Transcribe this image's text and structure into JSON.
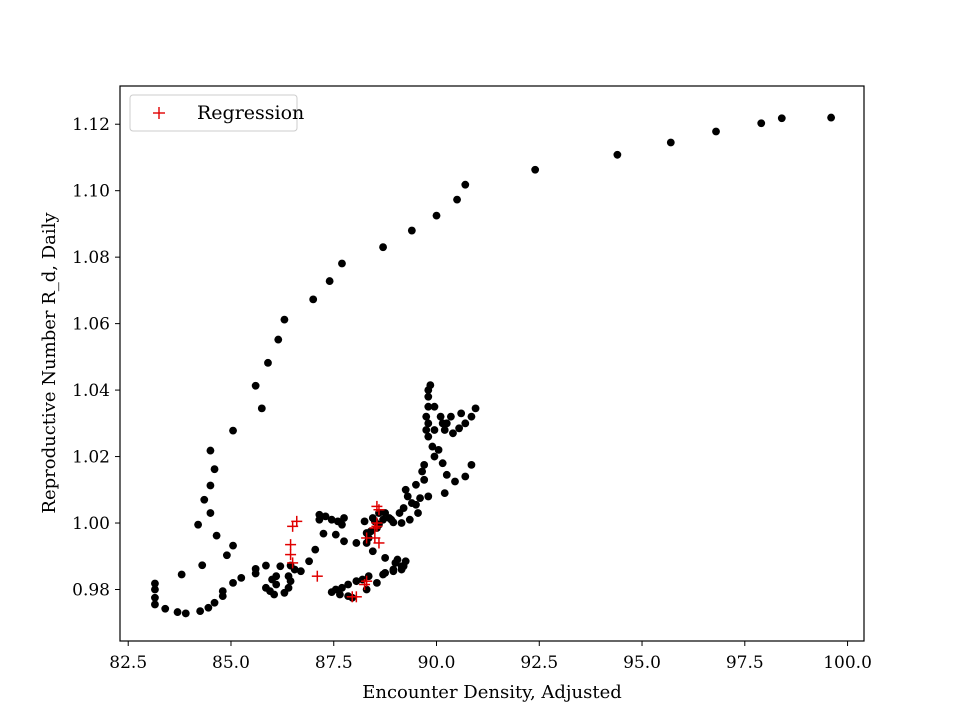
{
  "chart_data": {
    "type": "scatter",
    "title": "",
    "xlabel": "Encounter Density, Adjusted",
    "ylabel": "Reproductive Number R_d, Daily",
    "xlim": [
      82.3,
      100.4
    ],
    "ylim": [
      0.9645,
      1.1315
    ],
    "x_ticks": [
      82.5,
      85.0,
      87.5,
      90.0,
      92.5,
      95.0,
      97.5,
      100.0
    ],
    "x_tick_labels": [
      "82.5",
      "85.0",
      "87.5",
      "90.0",
      "92.5",
      "95.0",
      "97.5",
      "100.0"
    ],
    "y_ticks": [
      0.98,
      1.0,
      1.02,
      1.04,
      1.06,
      1.08,
      1.1,
      1.12
    ],
    "y_tick_labels": [
      "0.98",
      "1.00",
      "1.02",
      "1.04",
      "1.06",
      "1.08",
      "1.10",
      "1.12"
    ],
    "grid": false,
    "legend_position": "upper-left",
    "colors": {
      "observed": "#000000",
      "regression": "#e00000"
    },
    "series": [
      {
        "marker": "dot",
        "points": [
          [
            99.6,
            1.122
          ],
          [
            98.4,
            1.1218
          ],
          [
            97.9,
            1.1203
          ],
          [
            96.8,
            1.1178
          ],
          [
            95.7,
            1.1145
          ],
          [
            94.4,
            1.1108
          ],
          [
            92.4,
            1.1063
          ],
          [
            90.7,
            1.1018
          ],
          [
            90.5,
            1.0973
          ],
          [
            90.0,
            1.0925
          ],
          [
            89.4,
            1.088
          ],
          [
            88.7,
            1.083
          ],
          [
            87.7,
            1.0781
          ],
          [
            87.4,
            1.0728
          ],
          [
            87.0,
            1.0673
          ],
          [
            86.3,
            1.0612
          ],
          [
            86.15,
            1.0552
          ],
          [
            85.9,
            1.0482
          ],
          [
            85.6,
            1.0413
          ],
          [
            85.75,
            1.0345
          ],
          [
            85.05,
            1.0278
          ],
          [
            84.5,
            1.0218
          ],
          [
            84.6,
            1.0162
          ],
          [
            84.5,
            1.0113
          ],
          [
            84.35,
            1.007
          ],
          [
            84.5,
            1.003
          ],
          [
            84.2,
            0.9995
          ],
          [
            84.65,
            0.9962
          ],
          [
            85.05,
            0.9932
          ],
          [
            84.9,
            0.9903
          ],
          [
            84.3,
            0.9873
          ],
          [
            83.8,
            0.9845
          ],
          [
            83.15,
            0.9818
          ],
          [
            83.15,
            0.98
          ],
          [
            83.15,
            0.9775
          ],
          [
            83.15,
            0.9755
          ],
          [
            83.4,
            0.9742
          ],
          [
            83.7,
            0.9732
          ],
          [
            83.9,
            0.9728
          ],
          [
            84.25,
            0.9735
          ],
          [
            84.45,
            0.9745
          ],
          [
            84.6,
            0.976
          ],
          [
            84.8,
            0.978
          ],
          [
            84.8,
            0.9795
          ],
          [
            85.05,
            0.982
          ],
          [
            85.25,
            0.9835
          ],
          [
            85.6,
            0.9848
          ],
          [
            85.6,
            0.9862
          ],
          [
            85.85,
            0.9872
          ],
          [
            86.2,
            0.987
          ],
          [
            86.45,
            0.9872
          ],
          [
            86.55,
            0.986
          ],
          [
            86.7,
            0.9855
          ],
          [
            86.4,
            0.984
          ],
          [
            86.45,
            0.9825
          ],
          [
            86.4,
            0.9805
          ],
          [
            86.3,
            0.979
          ],
          [
            86.05,
            0.9785
          ],
          [
            85.95,
            0.9795
          ],
          [
            85.85,
            0.9805
          ],
          [
            86.1,
            0.9815
          ],
          [
            86.0,
            0.983
          ],
          [
            86.1,
            0.984
          ],
          [
            86.9,
            0.9885
          ],
          [
            87.05,
            0.992
          ],
          [
            87.25,
            0.9968
          ],
          [
            87.15,
            1.001
          ],
          [
            87.15,
            1.0025
          ],
          [
            87.3,
            1.002
          ],
          [
            87.45,
            1.001
          ],
          [
            87.6,
            1.0005
          ],
          [
            87.75,
            1.0015
          ],
          [
            87.7,
            0.9995
          ],
          [
            87.55,
            0.9965
          ],
          [
            87.75,
            0.9945
          ],
          [
            88.05,
            0.994
          ],
          [
            88.3,
            0.997
          ],
          [
            88.25,
            1.0005
          ],
          [
            88.45,
            1.0015
          ],
          [
            88.6,
            1.003
          ],
          [
            88.75,
            1.003
          ],
          [
            88.85,
            1.0015
          ],
          [
            88.95,
            1.0002
          ],
          [
            89.15,
            1.0
          ],
          [
            89.35,
            1.001
          ],
          [
            89.55,
            1.003
          ],
          [
            89.5,
            1.0055
          ],
          [
            89.3,
            1.008
          ],
          [
            89.25,
            1.01
          ],
          [
            89.5,
            1.0115
          ],
          [
            89.7,
            1.013
          ],
          [
            89.65,
            1.0155
          ],
          [
            89.7,
            1.0175
          ],
          [
            89.95,
            1.02
          ],
          [
            89.9,
            1.023
          ],
          [
            89.8,
            1.026
          ],
          [
            89.75,
            1.028
          ],
          [
            89.8,
            1.03
          ],
          [
            89.75,
            1.032
          ],
          [
            89.8,
            1.035
          ],
          [
            89.8,
            1.038
          ],
          [
            89.8,
            1.04
          ],
          [
            89.85,
            1.0415
          ],
          [
            89.95,
            1.035
          ],
          [
            90.1,
            1.032
          ],
          [
            90.25,
            1.03
          ],
          [
            90.2,
            1.028
          ],
          [
            90.4,
            1.027
          ],
          [
            90.55,
            1.0285
          ],
          [
            90.7,
            1.03
          ],
          [
            90.85,
            1.032
          ],
          [
            90.95,
            1.0345
          ],
          [
            90.6,
            1.033
          ],
          [
            90.35,
            1.032
          ],
          [
            90.15,
            1.03
          ],
          [
            89.95,
            1.028
          ],
          [
            90.05,
            1.022
          ],
          [
            90.15,
            1.018
          ],
          [
            90.25,
            1.0145
          ],
          [
            90.45,
            1.0125
          ],
          [
            90.7,
            1.014
          ],
          [
            90.85,
            1.0175
          ],
          [
            90.2,
            1.009
          ],
          [
            89.8,
            1.008
          ],
          [
            89.6,
            1.0075
          ],
          [
            89.4,
            1.006
          ],
          [
            89.2,
            1.0045
          ],
          [
            89.1,
            1.003
          ],
          [
            88.9,
            1.001
          ],
          [
            88.7,
            1.001
          ],
          [
            88.5,
            1.0005
          ],
          [
            88.6,
            0.9995
          ],
          [
            88.55,
            0.9985
          ],
          [
            88.4,
            0.9975
          ],
          [
            88.35,
            0.9955
          ],
          [
            88.3,
            0.994
          ],
          [
            88.45,
            0.9915
          ],
          [
            88.75,
            0.9895
          ],
          [
            89.0,
            0.988
          ],
          [
            89.2,
            0.987
          ],
          [
            89.15,
            0.986
          ],
          [
            88.95,
            0.9855
          ],
          [
            88.75,
            0.985
          ],
          [
            88.35,
            0.984
          ],
          [
            88.2,
            0.983
          ],
          [
            88.05,
            0.9825
          ],
          [
            87.85,
            0.9815
          ],
          [
            87.7,
            0.9805
          ],
          [
            87.55,
            0.98
          ],
          [
            87.45,
            0.9792
          ],
          [
            87.65,
            0.9785
          ],
          [
            87.85,
            0.978
          ],
          [
            87.95,
            0.9775
          ],
          [
            88.3,
            0.98
          ],
          [
            88.55,
            0.982
          ],
          [
            88.7,
            0.9845
          ],
          [
            88.95,
            0.986
          ],
          [
            89.15,
            0.987
          ],
          [
            89.25,
            0.9885
          ],
          [
            89.05,
            0.989
          ]
        ]
      },
      {
        "name": "Regression",
        "marker": "plus",
        "points": [
          [
            86.6,
            1.0005
          ],
          [
            86.5,
            0.999
          ],
          [
            86.45,
            0.9935
          ],
          [
            86.45,
            0.9905
          ],
          [
            86.5,
            0.988
          ],
          [
            87.1,
            0.984
          ],
          [
            87.95,
            0.9778
          ],
          [
            88.05,
            0.9778
          ],
          [
            88.25,
            0.9815
          ],
          [
            88.3,
            0.9825
          ],
          [
            88.3,
            0.9955
          ],
          [
            88.5,
            0.9955
          ],
          [
            88.5,
            0.9985
          ],
          [
            88.55,
            0.999
          ],
          [
            88.6,
            0.994
          ],
          [
            88.55,
            1.005
          ],
          [
            88.6,
            1.004
          ],
          [
            88.55,
            1.0
          ]
        ]
      }
    ]
  }
}
